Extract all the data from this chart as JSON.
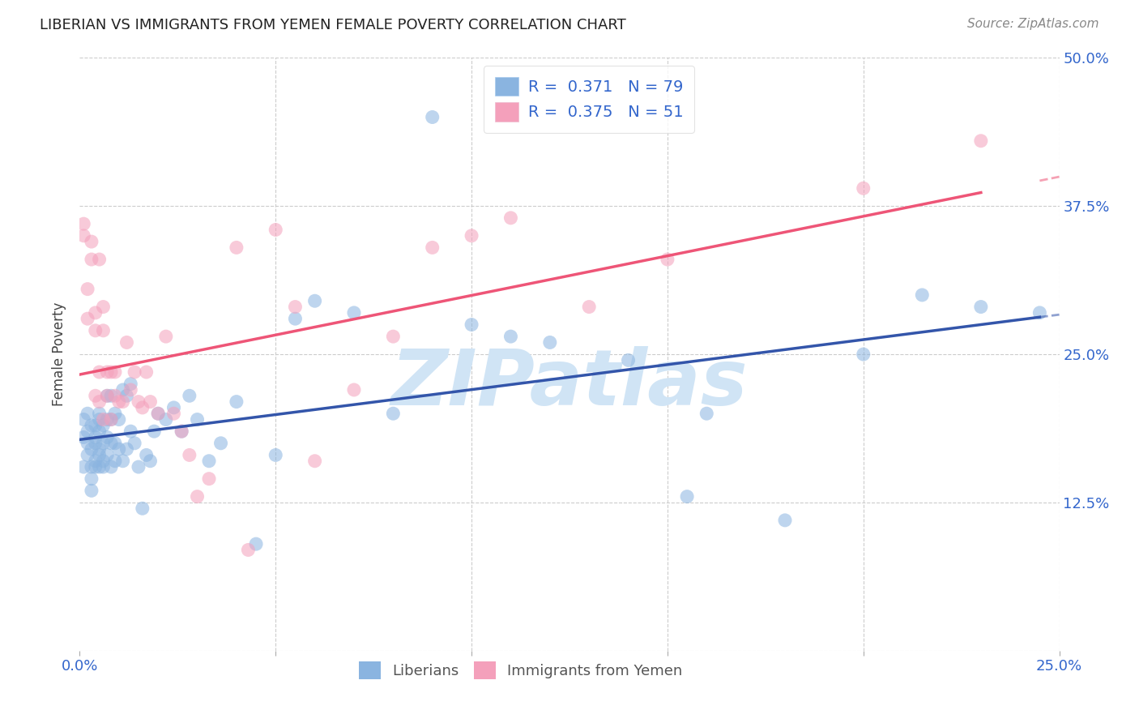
{
  "title": "LIBERIAN VS IMMIGRANTS FROM YEMEN FEMALE POVERTY CORRELATION CHART",
  "source": "Source: ZipAtlas.com",
  "ylabel": "Female Poverty",
  "xlim": [
    0.0,
    0.25
  ],
  "ylim": [
    0.0,
    0.5
  ],
  "liberian_R": 0.371,
  "liberian_N": 79,
  "yemen_R": 0.375,
  "yemen_N": 51,
  "liberian_color": "#8ab4e0",
  "yemen_color": "#f4a0bb",
  "liberian_line_color": "#3355aa",
  "yemen_line_color": "#ee5577",
  "watermark": "ZIPatlas",
  "watermark_color": "#d0e4f5",
  "liberian_x": [
    0.001,
    0.001,
    0.001,
    0.002,
    0.002,
    0.002,
    0.002,
    0.003,
    0.003,
    0.003,
    0.003,
    0.003,
    0.004,
    0.004,
    0.004,
    0.004,
    0.004,
    0.005,
    0.005,
    0.005,
    0.005,
    0.005,
    0.005,
    0.006,
    0.006,
    0.006,
    0.006,
    0.007,
    0.007,
    0.007,
    0.007,
    0.008,
    0.008,
    0.008,
    0.008,
    0.009,
    0.009,
    0.009,
    0.01,
    0.01,
    0.011,
    0.011,
    0.012,
    0.012,
    0.013,
    0.013,
    0.014,
    0.015,
    0.016,
    0.017,
    0.018,
    0.019,
    0.02,
    0.022,
    0.024,
    0.026,
    0.028,
    0.03,
    0.033,
    0.036,
    0.04,
    0.045,
    0.05,
    0.055,
    0.06,
    0.07,
    0.08,
    0.09,
    0.1,
    0.11,
    0.12,
    0.14,
    0.155,
    0.16,
    0.18,
    0.2,
    0.215,
    0.23,
    0.245
  ],
  "liberian_y": [
    0.18,
    0.155,
    0.195,
    0.175,
    0.165,
    0.185,
    0.2,
    0.155,
    0.17,
    0.19,
    0.145,
    0.135,
    0.16,
    0.175,
    0.19,
    0.155,
    0.18,
    0.17,
    0.155,
    0.185,
    0.195,
    0.165,
    0.2,
    0.16,
    0.175,
    0.19,
    0.155,
    0.165,
    0.18,
    0.195,
    0.215,
    0.155,
    0.175,
    0.195,
    0.215,
    0.16,
    0.175,
    0.2,
    0.17,
    0.195,
    0.16,
    0.22,
    0.17,
    0.215,
    0.185,
    0.225,
    0.175,
    0.155,
    0.12,
    0.165,
    0.16,
    0.185,
    0.2,
    0.195,
    0.205,
    0.185,
    0.215,
    0.195,
    0.16,
    0.175,
    0.21,
    0.09,
    0.165,
    0.28,
    0.295,
    0.285,
    0.2,
    0.45,
    0.275,
    0.265,
    0.26,
    0.245,
    0.13,
    0.2,
    0.11,
    0.25,
    0.3,
    0.29,
    0.285
  ],
  "yemen_x": [
    0.001,
    0.001,
    0.002,
    0.002,
    0.003,
    0.003,
    0.004,
    0.004,
    0.004,
    0.005,
    0.005,
    0.005,
    0.006,
    0.006,
    0.006,
    0.007,
    0.007,
    0.008,
    0.008,
    0.009,
    0.009,
    0.01,
    0.011,
    0.012,
    0.013,
    0.014,
    0.015,
    0.016,
    0.017,
    0.018,
    0.02,
    0.022,
    0.024,
    0.026,
    0.028,
    0.03,
    0.033,
    0.04,
    0.043,
    0.05,
    0.055,
    0.06,
    0.07,
    0.08,
    0.09,
    0.1,
    0.11,
    0.13,
    0.15,
    0.2,
    0.23
  ],
  "yemen_y": [
    0.35,
    0.36,
    0.28,
    0.305,
    0.33,
    0.345,
    0.27,
    0.285,
    0.215,
    0.33,
    0.21,
    0.235,
    0.195,
    0.27,
    0.29,
    0.215,
    0.235,
    0.195,
    0.235,
    0.215,
    0.235,
    0.21,
    0.21,
    0.26,
    0.22,
    0.235,
    0.21,
    0.205,
    0.235,
    0.21,
    0.2,
    0.265,
    0.2,
    0.185,
    0.165,
    0.13,
    0.145,
    0.34,
    0.085,
    0.355,
    0.29,
    0.16,
    0.22,
    0.265,
    0.34,
    0.35,
    0.365,
    0.29,
    0.33,
    0.39,
    0.43
  ]
}
